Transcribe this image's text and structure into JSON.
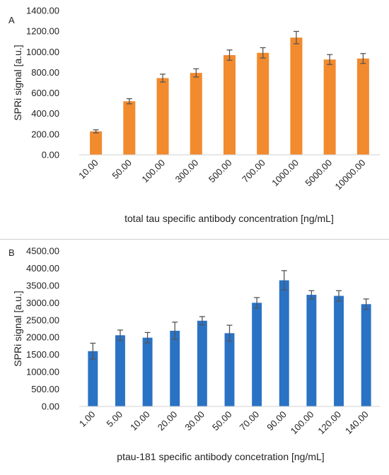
{
  "chart_data": [
    {
      "type": "bar",
      "panel_label": "A",
      "color": "#f28a2e",
      "categories": [
        "10.00",
        "50.00",
        "100.00",
        "300.00",
        "500.00",
        "700.00",
        "1000.00",
        "5000.00",
        "10000.00"
      ],
      "values": [
        228,
        520,
        745,
        795,
        968,
        990,
        1138,
        925,
        935
      ],
      "errors": [
        15,
        25,
        38,
        40,
        50,
        50,
        60,
        48,
        48
      ],
      "ylabel": "SPRi signal [a.u.]",
      "xlabel": "total tau specific antibody concentration [ng/mL]",
      "ylim": [
        0,
        1400
      ],
      "yticks": [
        "0.00",
        "200.00",
        "400.00",
        "600.00",
        "800.00",
        "1000.00",
        "1200.00",
        "1400.00"
      ],
      "grid": false,
      "legend": "none"
    },
    {
      "type": "bar",
      "panel_label": "B",
      "color": "#2a72c4",
      "categories": [
        "1.00",
        "5.00",
        "10.00",
        "20.00",
        "30.00",
        "50.00",
        "70.00",
        "90.00",
        "100.00",
        "120.00",
        "140.00"
      ],
      "values": [
        1600,
        2060,
        1990,
        2190,
        2480,
        2120,
        3000,
        3650,
        3230,
        3200,
        2960
      ],
      "errors": [
        230,
        150,
        150,
        250,
        120,
        230,
        150,
        280,
        120,
        150,
        150
      ],
      "ylabel": "SPRi signal [a.u.]",
      "xlabel": "ptau-181 specific antibody concetration [ng/mL]",
      "ylim": [
        0,
        4500
      ],
      "yticks": [
        "0.00",
        "500.00",
        "1000.00",
        "1500.00",
        "2000.00",
        "2500.00",
        "3000.00",
        "3500.00",
        "4000.00",
        "4500.00"
      ],
      "grid": false,
      "legend": "none"
    }
  ]
}
